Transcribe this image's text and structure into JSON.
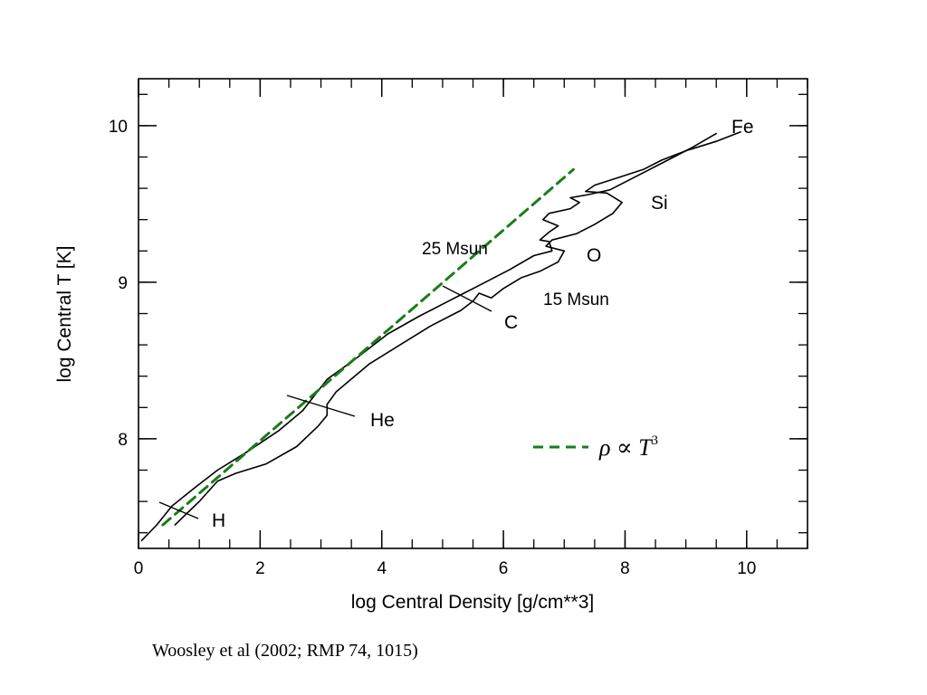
{
  "chart_data": {
    "type": "line",
    "xlabel": "log Central Density [g/cm**3]",
    "ylabel": "log Central T [K]",
    "xlim": [
      0,
      11
    ],
    "ylim": [
      7.3,
      10.3
    ],
    "x_ticks": [
      0,
      2,
      4,
      6,
      8,
      10
    ],
    "y_ticks": [
      8,
      9,
      10
    ],
    "grid": false,
    "series": [
      {
        "name": "25 Msun",
        "color": "#000000",
        "points": [
          [
            0.05,
            7.35
          ],
          [
            0.3,
            7.45
          ],
          [
            0.55,
            7.57
          ],
          [
            0.9,
            7.68
          ],
          [
            1.3,
            7.8
          ],
          [
            1.8,
            7.92
          ],
          [
            2.3,
            8.05
          ],
          [
            2.7,
            8.18
          ],
          [
            2.9,
            8.28
          ],
          [
            3.1,
            8.38
          ],
          [
            3.6,
            8.52
          ],
          [
            4.1,
            8.67
          ],
          [
            4.6,
            8.78
          ],
          [
            5.1,
            8.88
          ],
          [
            5.6,
            8.98
          ],
          [
            6.1,
            9.08
          ],
          [
            6.5,
            9.17
          ],
          [
            6.8,
            9.2
          ],
          [
            6.75,
            9.26
          ],
          [
            6.6,
            9.27
          ],
          [
            6.75,
            9.32
          ],
          [
            6.9,
            9.36
          ],
          [
            6.65,
            9.4
          ],
          [
            6.75,
            9.44
          ],
          [
            7.1,
            9.47
          ],
          [
            7.25,
            9.51
          ],
          [
            7.1,
            9.54
          ],
          [
            7.4,
            9.56
          ],
          [
            7.75,
            9.59
          ],
          [
            8.0,
            9.64
          ],
          [
            8.2,
            9.68
          ],
          [
            8.7,
            9.78
          ],
          [
            9.1,
            9.86
          ],
          [
            9.5,
            9.95
          ]
        ]
      },
      {
        "name": "15 Msun",
        "color": "#000000",
        "points": [
          [
            0.6,
            7.45
          ],
          [
            1.0,
            7.6
          ],
          [
            1.3,
            7.73
          ],
          [
            1.6,
            7.78
          ],
          [
            2.1,
            7.84
          ],
          [
            2.6,
            7.95
          ],
          [
            2.95,
            8.08
          ],
          [
            3.1,
            8.15
          ],
          [
            3.1,
            8.22
          ],
          [
            3.25,
            8.3
          ],
          [
            3.8,
            8.48
          ],
          [
            4.3,
            8.6
          ],
          [
            4.8,
            8.72
          ],
          [
            5.3,
            8.82
          ],
          [
            5.5,
            8.88
          ],
          [
            5.6,
            8.93
          ],
          [
            5.8,
            8.9
          ],
          [
            6.0,
            8.96
          ],
          [
            6.3,
            9.03
          ],
          [
            6.6,
            9.07
          ],
          [
            6.9,
            9.13
          ],
          [
            7.0,
            9.2
          ],
          [
            6.7,
            9.23
          ],
          [
            6.8,
            9.27
          ],
          [
            7.2,
            9.31
          ],
          [
            7.5,
            9.37
          ],
          [
            7.8,
            9.44
          ],
          [
            7.95,
            9.51
          ],
          [
            7.7,
            9.57
          ],
          [
            7.35,
            9.58
          ],
          [
            7.5,
            9.62
          ],
          [
            7.9,
            9.67
          ],
          [
            8.3,
            9.72
          ],
          [
            8.6,
            9.78
          ],
          [
            9.0,
            9.84
          ],
          [
            9.5,
            9.9
          ],
          [
            9.9,
            9.96
          ]
        ]
      },
      {
        "name": "ρ ∝ T³",
        "color": "#1a7d1a",
        "dashed": true,
        "points": [
          [
            0.4,
            7.45
          ],
          [
            7.15,
            9.72
          ]
        ]
      }
    ],
    "annotations": {
      "burning_stages": [
        "H",
        "He",
        "C",
        "O",
        "Si",
        "Fe"
      ],
      "mass_labels": [
        "25 Msun",
        "15 Msun"
      ],
      "legend_label": "ρ ∝ T",
      "legend_exponent": "3"
    }
  },
  "citation": "Woosley et al (2002; RMP 74, 1015)"
}
